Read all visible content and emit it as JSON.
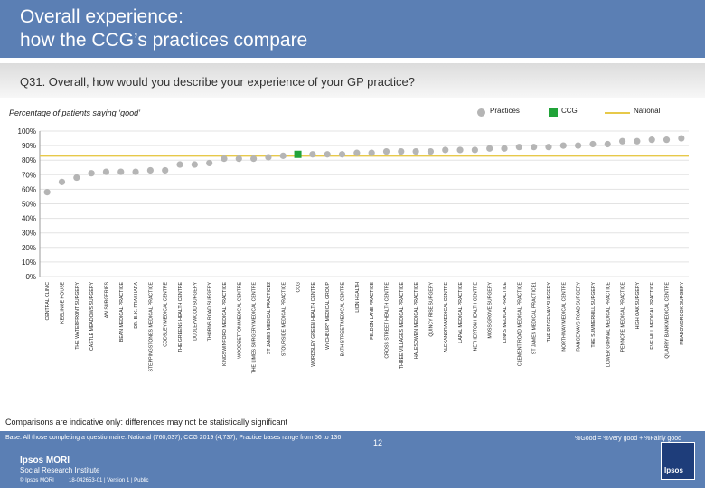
{
  "header": {
    "title": "Overall experience:\nhow the CCG’s practices compare"
  },
  "question": {
    "text": "Q31. Overall, how would you describe your experience of your GP practice?"
  },
  "chart_data": {
    "type": "scatter",
    "subtitle": "Percentage of patients saying ‘good’",
    "legend": [
      "Practices",
      "CCG",
      "National"
    ],
    "ylim": [
      0,
      100
    ],
    "yticks": [
      "0%",
      "10%",
      "20%",
      "30%",
      "40%",
      "50%",
      "60%",
      "70%",
      "80%",
      "90%",
      "100%"
    ],
    "national": 83,
    "ccg_category": "CCG",
    "categories": [
      "CENTRAL CLINIC",
      "KEELINGE HOUSE",
      "THE WATERFRONT SURGERY",
      "CASTLE MEADOWS SURGERY",
      "AW SURGERIES",
      "BEAN MEDICAL PRACTICE",
      "DR. B. K. PRASHARA",
      "STEPPINGSTONES MEDICAL PRACTICE",
      "CODSLEY MEDICAL CENTRE",
      "THE GREENS HEALTH CENTRE",
      "DUDLEYWOOD SURGERY",
      "THORNS ROAD SURGERY",
      "KINGSWINFORD MEDICAL PRACTICE",
      "WOODSETTON MEDICAL CENTRE",
      "THE LIMES SURGERY MEDICAL CENTRE",
      "ST JAMES MEDICAL PRACTICE2",
      "STOURSIDE MEDICAL PRACTICE",
      "CCG",
      "WORDSLEY GREEN HEALTH CENTRE",
      "WYCHBURY MEDICAL GROUP",
      "BATH STREET MEDICAL CENTRE",
      "LION HEALTH",
      "FELDON LANE PRACTICE",
      "CROSS STREET HEALTH CENTRE",
      "THREE VILLAGES MEDICAL PRACTICE",
      "HALESOWEN MEDICAL PRACTICE",
      "QUINCY RISE SURGERY",
      "ALEXANDRA MEDICAL CENTRE",
      "LAPAL MEDICAL PRACTICE",
      "NETHERTON HEALTH CENTRE",
      "MOSS GROVE SURGERY",
      "LINKS MEDICAL PRACTICE",
      "CLEMENT ROAD MEDICAL PRACTICE",
      "ST JAMES MEDICAL PRACTICE1",
      "THE RIDGEWAY SURGERY",
      "NORTHWAY MEDICAL CENTRE",
      "RANGEWAYS ROAD SURGERY",
      "THE SUMMERHILL SURGERY",
      "LOWER GORNAL MEDICAL PRACTICE",
      "PENNCRE MEDICAL PRACTICE",
      "HIGH OAK SURGERY",
      "EVE HILL MEDICAL PRACTICE",
      "QUARRY BANK MEDICAL CENTRE",
      "MEADOWBROOK SURGERY"
    ],
    "values": [
      58,
      65,
      68,
      71,
      72,
      72,
      72,
      73,
      73,
      77,
      77,
      78,
      81,
      81,
      81,
      82,
      83,
      84,
      84,
      84,
      84,
      85,
      85,
      86,
      86,
      86,
      86,
      87,
      87,
      87,
      88,
      88,
      89,
      89,
      89,
      90,
      90,
      91,
      91,
      93,
      93,
      94,
      94,
      95
    ]
  },
  "note": "Comparisons are indicative only: differences may not be statistically significant",
  "footer": {
    "base": "Base: All those completing a questionnaire: National (760,037); CCG 2019 (4,737); Practice bases range from 56 to 136",
    "formula": "%Good = %Very good + %Fairly good",
    "logo_line1": "Ipsos MORI",
    "logo_line2": "Social Research Institute",
    "copyright": "© Ipsos MORI",
    "job": "18-042653-01 | Version 1 | Public",
    "page": "12",
    "ipsos_logo": "Ipsos"
  },
  "colors": {
    "header": "#5b7fb4",
    "practice": "#b5b5b5",
    "ccg": "#21a339",
    "national": "#e7c94a"
  }
}
